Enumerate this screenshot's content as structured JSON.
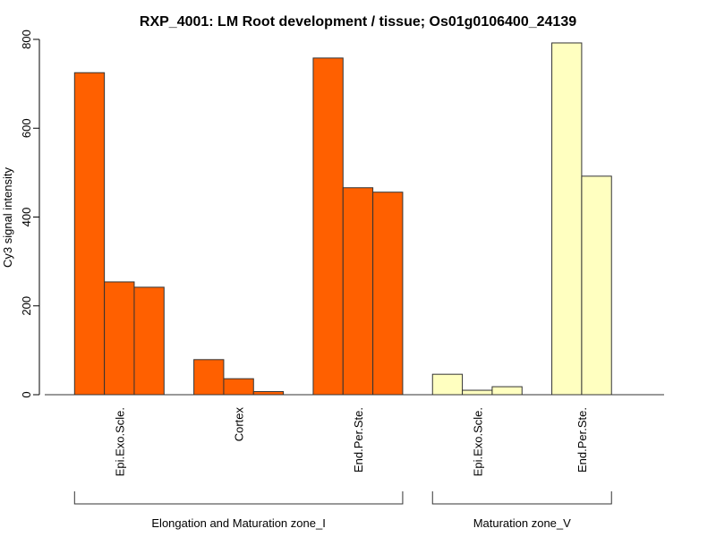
{
  "chart_data": {
    "type": "bar",
    "title": "RXP_4001: LM Root development / tissue; Os01g0106400_24139",
    "xlabel": "",
    "ylabel": "Cy3 signal intensity",
    "ylim": [
      0,
      800
    ],
    "yticks": [
      0,
      200,
      400,
      600,
      800
    ],
    "grid": false,
    "groups": [
      {
        "label": "Epi.Exo.Scle.",
        "values": [
          725,
          254,
          242
        ],
        "color": "#FF6000"
      },
      {
        "label": "Cortex",
        "values": [
          79,
          36,
          7
        ],
        "color": "#FF6000"
      },
      {
        "label": "End.Per.Ste.",
        "values": [
          758,
          466,
          456
        ],
        "color": "#FF6000"
      },
      {
        "label": "Epi.Exo.Scle.",
        "values": [
          46,
          10,
          18
        ],
        "color": "#FFFFC0"
      },
      {
        "label": "End.Per.Ste.",
        "values": [
          792,
          492
        ],
        "color": "#FFFFC0"
      }
    ],
    "supergroups": [
      {
        "label": "Elongation and Maturation zone_I",
        "groups": [
          0,
          1,
          2
        ]
      },
      {
        "label": "Maturation zone_V",
        "groups": [
          3,
          4
        ]
      }
    ]
  }
}
